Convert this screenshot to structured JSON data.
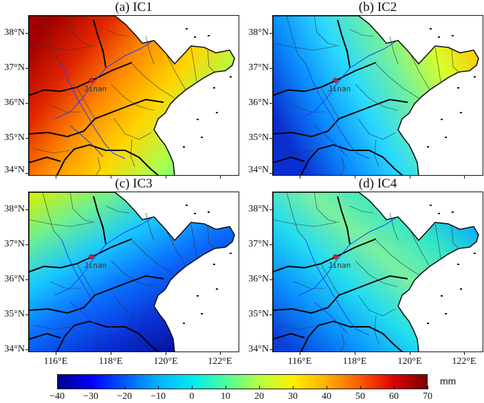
{
  "panels": [
    {
      "title": "(a) IC1",
      "gradient_stops": [
        "#a10000",
        "#e02400",
        "#ff8a00",
        "#ffd500",
        "#a9ff50",
        "#3af0d0"
      ]
    },
    {
      "title": "(b) IC2",
      "gradient_stops": [
        "#0a2fd0",
        "#0a8dff",
        "#29d9ff",
        "#6ff0a0",
        "#d7ff2c",
        "#ffc800"
      ]
    },
    {
      "title": "(c) IC3",
      "gradient_stops": [
        "#d8f000",
        "#6ff090",
        "#18c8ff",
        "#0a70ff",
        "#0a34d8",
        "#06109a"
      ]
    },
    {
      "title": "(d) IC4",
      "gradient_stops": [
        "#0a3fd8",
        "#0a90ff",
        "#22dcf0",
        "#7af0a0",
        "#33e6c8",
        "#0aa6ff"
      ]
    }
  ],
  "city": {
    "name": "Jinan",
    "marker_color": "#e21c1c"
  },
  "lat_labels": [
    "38°N",
    "37°N",
    "36°N",
    "35°N",
    "34°N"
  ],
  "lon_labels": [
    "116°E",
    "118°E",
    "120°E",
    "122°E"
  ],
  "colorbar": {
    "unit": "mm",
    "ticks": [
      "−40",
      "−30",
      "−20",
      "−10",
      "0",
      "10",
      "20",
      "30",
      "40",
      "50",
      "60",
      "70"
    ],
    "colors": [
      "#00008a",
      "#0000ff",
      "#005aff",
      "#00b4ff",
      "#00eaf0",
      "#4cff9c",
      "#b4ff44",
      "#fff000",
      "#ffb000",
      "#ff5a00",
      "#e00000",
      "#7a0000"
    ]
  },
  "river_color": "#1a3cff"
}
